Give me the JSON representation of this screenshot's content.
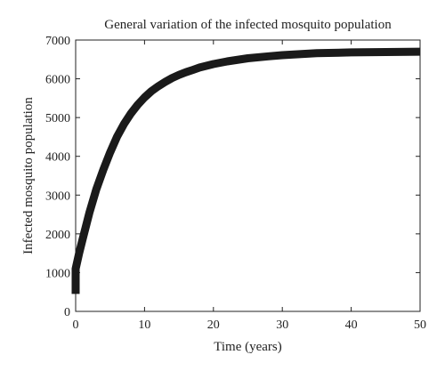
{
  "chart_data": {
    "type": "line",
    "title": "General variation of the infected mosquito population",
    "xlabel": "Time (years)",
    "ylabel": "Infected mosquito population",
    "xlim": [
      0,
      50
    ],
    "ylim": [
      0,
      7000
    ],
    "xticks": [
      0,
      10,
      20,
      30,
      40,
      50
    ],
    "yticks": [
      0,
      1000,
      2000,
      3000,
      4000,
      5000,
      6000,
      7000
    ],
    "grid": false,
    "legend": "none",
    "line_color": "#1a1a1a",
    "series": [
      {
        "x": [
          0,
          0,
          0.5,
          1,
          2,
          3,
          4,
          5,
          6,
          7,
          8,
          9,
          10,
          11,
          12,
          13,
          14,
          15,
          16,
          17,
          18,
          20,
          22,
          25,
          28,
          30,
          35,
          40,
          45,
          50
        ],
        "y": [
          450,
          1100,
          1500,
          1850,
          2550,
          3150,
          3650,
          4100,
          4500,
          4830,
          5100,
          5330,
          5520,
          5680,
          5810,
          5920,
          6020,
          6100,
          6170,
          6230,
          6290,
          6380,
          6450,
          6530,
          6580,
          6610,
          6660,
          6680,
          6690,
          6700
        ]
      }
    ]
  }
}
